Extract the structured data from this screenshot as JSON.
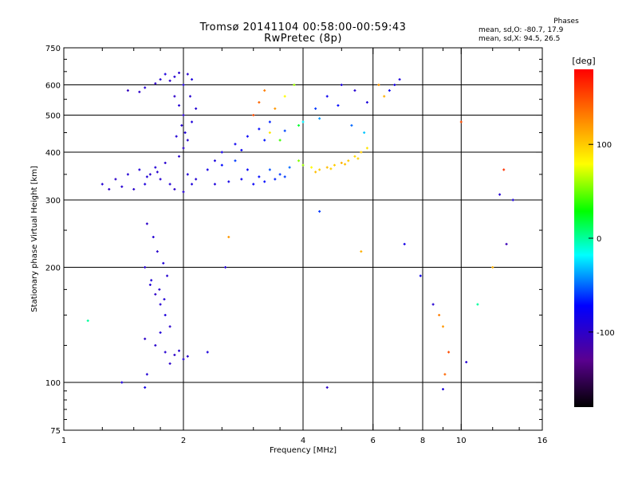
{
  "header": {
    "title_line1": "Tromsø 20141104 00:58:00-00:59:43",
    "title_line2": "RwPretec (8p)"
  },
  "phase_box": {
    "title": "Phases",
    "line_o": "mean, sd,O: -80.7, 17.9",
    "line_x": "mean, sd,X:  94.5, 26.5"
  },
  "chart_data": {
    "type": "scatter",
    "xlabel": "Frequency [MHz]",
    "ylabel": "Stationary phase Virtual Height [km]",
    "xscale": "log",
    "yscale": "log",
    "xlim": [
      1,
      16
    ],
    "ylim": [
      75,
      750
    ],
    "xticks": [
      1,
      2,
      4,
      6,
      8,
      10,
      16
    ],
    "xtick_labels": [
      "1",
      "2",
      "4",
      "6",
      "8",
      "10",
      "16"
    ],
    "yticks": [
      75,
      100,
      200,
      300,
      400,
      500,
      600,
      750
    ],
    "ytick_labels": [
      "75",
      "100",
      "200",
      "300",
      "400",
      "500",
      "600",
      "750"
    ],
    "grid": true,
    "colorbar": {
      "label": "[deg]",
      "range": [
        -180,
        180
      ],
      "ticks": [
        100,
        0,
        -100
      ],
      "tick_labels": [
        "100",
        "0",
        "-100"
      ],
      "colors": [
        "#000000",
        "#5a0090",
        "#0000ff",
        "#00ffff",
        "#00ff00",
        "#ffff00",
        "#ff8000",
        "#ff0000"
      ]
    },
    "series": [
      {
        "points": [
          [
            1.6,
            590,
            -95
          ],
          [
            1.7,
            605,
            -100
          ],
          [
            1.75,
            620,
            -95
          ],
          [
            1.8,
            640,
            -90
          ],
          [
            1.85,
            615,
            -100
          ],
          [
            1.9,
            630,
            -95
          ],
          [
            1.95,
            645,
            -98
          ],
          [
            2.0,
            600,
            -92
          ],
          [
            2.05,
            640,
            -96
          ],
          [
            2.1,
            620,
            -90
          ],
          [
            1.45,
            580,
            -105
          ],
          [
            1.55,
            575,
            -100
          ],
          [
            1.9,
            560,
            -100
          ],
          [
            1.95,
            530,
            -95
          ],
          [
            2.0,
            500,
            -98
          ],
          [
            1.98,
            470,
            -95
          ],
          [
            2.02,
            450,
            -92
          ],
          [
            2.05,
            430,
            -96
          ],
          [
            2.0,
            410,
            -100
          ],
          [
            1.95,
            390,
            -98
          ],
          [
            2.1,
            480,
            -90
          ],
          [
            2.15,
            520,
            -95
          ],
          [
            1.92,
            440,
            -94
          ],
          [
            2.08,
            560,
            -97
          ]
        ]
      },
      {
        "points": [
          [
            1.25,
            330,
            -95
          ],
          [
            1.35,
            340,
            -100
          ],
          [
            1.45,
            350,
            -95
          ],
          [
            1.55,
            360,
            -92
          ],
          [
            1.65,
            350,
            -98
          ],
          [
            1.75,
            340,
            -96
          ],
          [
            1.85,
            330,
            -94
          ],
          [
            1.9,
            320,
            -100
          ],
          [
            2.0,
            315,
            -95
          ],
          [
            1.6,
            330,
            -90
          ],
          [
            1.7,
            365,
            -93
          ],
          [
            1.8,
            375,
            -97
          ],
          [
            1.5,
            320,
            -99
          ],
          [
            1.4,
            325,
            -96
          ],
          [
            1.3,
            320,
            -100
          ],
          [
            2.1,
            330,
            -90
          ],
          [
            2.05,
            350,
            -92
          ],
          [
            2.15,
            340,
            -95
          ],
          [
            1.62,
            345,
            -93
          ],
          [
            1.72,
            355,
            -96
          ]
        ]
      },
      {
        "points": [
          [
            2.3,
            360,
            -85
          ],
          [
            2.5,
            370,
            -70
          ],
          [
            2.7,
            380,
            -60
          ],
          [
            2.9,
            360,
            -75
          ],
          [
            3.1,
            345,
            -70
          ],
          [
            3.3,
            360,
            -55
          ],
          [
            3.5,
            350,
            -60
          ],
          [
            3.7,
            365,
            -50
          ],
          [
            2.4,
            330,
            -90
          ],
          [
            2.6,
            335,
            -85
          ],
          [
            2.8,
            340,
            -80
          ],
          [
            3.0,
            330,
            -75
          ],
          [
            3.2,
            335,
            -70
          ],
          [
            3.4,
            340,
            -65
          ],
          [
            3.6,
            345,
            -60
          ],
          [
            2.5,
            400,
            -85
          ],
          [
            2.7,
            420,
            -80
          ],
          [
            2.9,
            440,
            -75
          ],
          [
            3.1,
            460,
            -70
          ],
          [
            3.3,
            480,
            -65
          ],
          [
            2.4,
            380,
            -88
          ],
          [
            2.8,
            405,
            -78
          ],
          [
            3.2,
            430,
            -68
          ],
          [
            3.6,
            455,
            -58
          ]
        ]
      },
      {
        "points": [
          [
            4.0,
            370,
            60
          ],
          [
            4.2,
            365,
            80
          ],
          [
            4.4,
            360,
            100
          ],
          [
            4.6,
            365,
            105
          ],
          [
            4.8,
            370,
            100
          ],
          [
            5.0,
            375,
            110
          ],
          [
            5.2,
            380,
            100
          ],
          [
            5.4,
            390,
            95
          ],
          [
            5.6,
            400,
            100
          ],
          [
            5.8,
            410,
            90
          ],
          [
            4.3,
            355,
            105
          ],
          [
            4.7,
            362,
            98
          ],
          [
            5.1,
            372,
            104
          ],
          [
            5.5,
            385,
            96
          ],
          [
            3.9,
            380,
            55
          ]
        ]
      },
      {
        "points": [
          [
            3.0,
            500,
            150
          ],
          [
            3.1,
            540,
            140
          ],
          [
            3.2,
            580,
            130
          ],
          [
            3.4,
            520,
            120
          ],
          [
            3.6,
            560,
            80
          ],
          [
            3.8,
            600,
            60
          ],
          [
            4.0,
            480,
            -20
          ],
          [
            4.3,
            520,
            -60
          ],
          [
            4.6,
            560,
            -80
          ],
          [
            5.0,
            600,
            -90
          ],
          [
            5.4,
            580,
            -95
          ],
          [
            5.8,
            540,
            -90
          ],
          [
            6.2,
            600,
            120
          ],
          [
            6.6,
            580,
            -80
          ],
          [
            7.0,
            620,
            -90
          ],
          [
            3.3,
            450,
            90
          ],
          [
            3.5,
            430,
            40
          ],
          [
            3.9,
            470,
            20
          ],
          [
            4.4,
            490,
            -40
          ],
          [
            4.9,
            530,
            -70
          ],
          [
            5.3,
            470,
            -50
          ],
          [
            5.7,
            450,
            -30
          ],
          [
            6.4,
            560,
            110
          ],
          [
            6.8,
            600,
            -85
          ]
        ]
      },
      {
        "points": [
          [
            1.62,
            260,
            -100
          ],
          [
            1.68,
            240,
            -95
          ],
          [
            1.72,
            220,
            -98
          ],
          [
            1.78,
            205,
            -92
          ],
          [
            1.82,
            190,
            -96
          ],
          [
            1.65,
            180,
            -94
          ],
          [
            1.7,
            170,
            -100
          ],
          [
            1.75,
            160,
            -95
          ],
          [
            1.8,
            150,
            -90
          ],
          [
            1.85,
            140,
            -98
          ],
          [
            1.6,
            200,
            -96
          ],
          [
            1.66,
            185,
            -92
          ],
          [
            1.74,
            175,
            -97
          ],
          [
            1.79,
            165,
            -93
          ]
        ]
      },
      {
        "points": [
          [
            1.6,
            130,
            -100
          ],
          [
            1.7,
            125,
            -98
          ],
          [
            1.8,
            120,
            -96
          ],
          [
            1.9,
            118,
            -100
          ],
          [
            2.0,
            115,
            -95
          ],
          [
            2.05,
            117,
            -97
          ],
          [
            1.62,
            105,
            -94
          ],
          [
            1.75,
            135,
            -93
          ],
          [
            1.85,
            112,
            -99
          ],
          [
            1.95,
            121,
            -96
          ]
        ]
      },
      {
        "points": [
          [
            1.15,
            145,
            0
          ],
          [
            1.4,
            100,
            -90
          ],
          [
            1.6,
            97,
            -85
          ],
          [
            2.3,
            120,
            -90
          ],
          [
            2.6,
            240,
            120
          ],
          [
            2.55,
            200,
            -95
          ],
          [
            4.6,
            97,
            -100
          ],
          [
            4.4,
            280,
            -60
          ],
          [
            5.6,
            220,
            110
          ],
          [
            7.2,
            230,
            -85
          ],
          [
            7.9,
            190,
            -80
          ],
          [
            8.5,
            160,
            -95
          ],
          [
            8.8,
            150,
            130
          ],
          [
            9.0,
            140,
            120
          ],
          [
            9.1,
            105,
            140
          ],
          [
            9.3,
            120,
            150
          ],
          [
            9.0,
            96,
            -90
          ],
          [
            10.3,
            113,
            -95
          ],
          [
            11.0,
            160,
            0
          ],
          [
            12.0,
            200,
            110
          ],
          [
            13.0,
            230,
            -110
          ],
          [
            12.5,
            310,
            -95
          ],
          [
            13.5,
            300,
            -90
          ],
          [
            12.8,
            360,
            160
          ],
          [
            10.0,
            480,
            150
          ]
        ]
      }
    ]
  }
}
